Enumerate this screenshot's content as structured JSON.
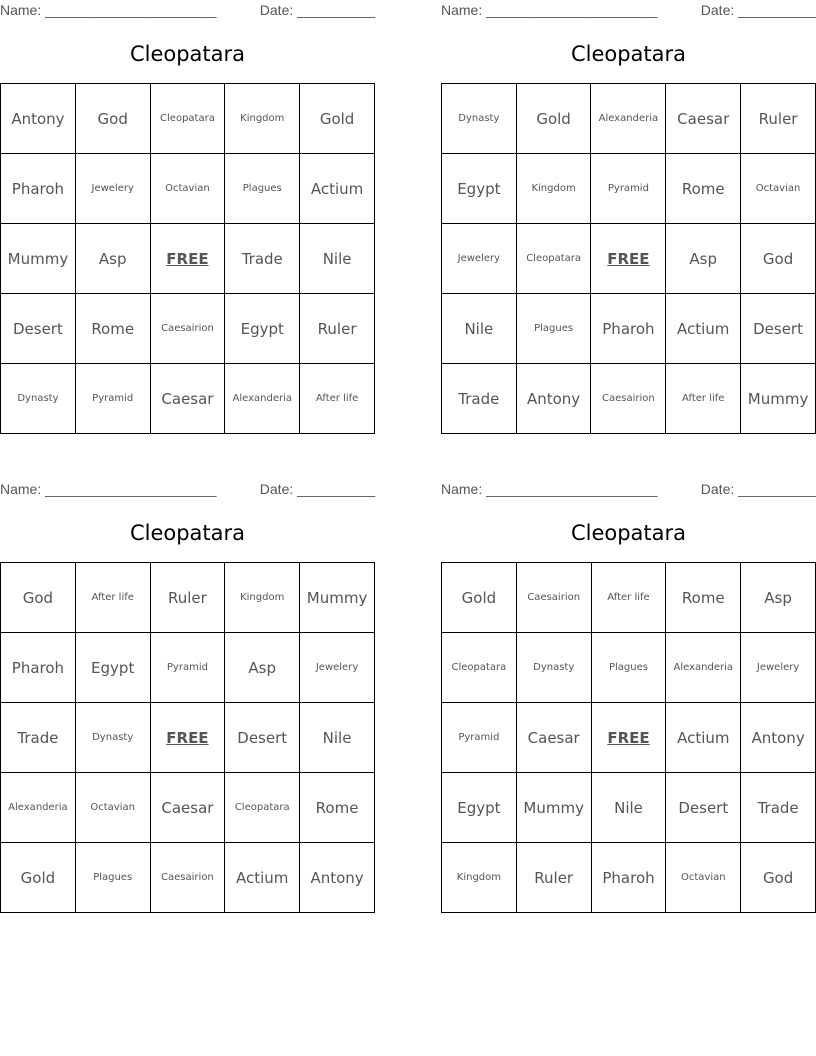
{
  "labels": {
    "name": "Name: ______________________",
    "date": "Date: __________"
  },
  "cards": [
    {
      "title": "Cleopatara",
      "grid": [
        [
          "Antony",
          "God",
          "Cleopatara",
          "Kingdom",
          "Gold"
        ],
        [
          "Pharoh",
          "Jewelery",
          "Octavian",
          "Plagues",
          "Actium"
        ],
        [
          "Mummy",
          "Asp",
          "FREE",
          "Trade",
          "Nile"
        ],
        [
          "Desert",
          "Rome",
          "Caesairion",
          "Egypt",
          "Ruler"
        ],
        [
          "Dynasty",
          "Pyramid",
          "Caesar",
          "Alexanderia",
          "After life"
        ]
      ]
    },
    {
      "title": "Cleopatara",
      "grid": [
        [
          "Dynasty",
          "Gold",
          "Alexanderia",
          "Caesar",
          "Ruler"
        ],
        [
          "Egypt",
          "Kingdom",
          "Pyramid",
          "Rome",
          "Octavian"
        ],
        [
          "Jewelery",
          "Cleopatara",
          "FREE",
          "Asp",
          "God"
        ],
        [
          "Nile",
          "Plagues",
          "Pharoh",
          "Actium",
          "Desert"
        ],
        [
          "Trade",
          "Antony",
          "Caesairion",
          "After life",
          "Mummy"
        ]
      ]
    },
    {
      "title": "Cleopatara",
      "grid": [
        [
          "God",
          "After life",
          "Ruler",
          "Kingdom",
          "Mummy"
        ],
        [
          "Pharoh",
          "Egypt",
          "Pyramid",
          "Asp",
          "Jewelery"
        ],
        [
          "Trade",
          "Dynasty",
          "FREE",
          "Desert",
          "Nile"
        ],
        [
          "Alexanderia",
          "Octavian",
          "Caesar",
          "Cleopatara",
          "Rome"
        ],
        [
          "Gold",
          "Plagues",
          "Caesairion",
          "Actium",
          "Antony"
        ]
      ]
    },
    {
      "title": "Cleopatara",
      "grid": [
        [
          "Gold",
          "Caesairion",
          "After life",
          "Rome",
          "Asp"
        ],
        [
          "Cleopatara",
          "Dynasty",
          "Plagues",
          "Alexanderia",
          "Jewelery"
        ],
        [
          "Pyramid",
          "Caesar",
          "FREE",
          "Actium",
          "Antony"
        ],
        [
          "Egypt",
          "Mummy",
          "Nile",
          "Desert",
          "Trade"
        ],
        [
          "Kingdom",
          "Ruler",
          "Pharoh",
          "Octavian",
          "God"
        ]
      ]
    }
  ]
}
